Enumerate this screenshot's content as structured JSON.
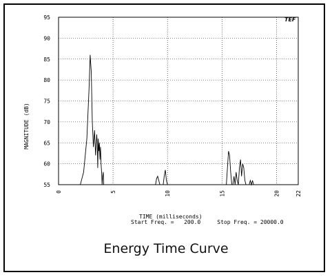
{
  "caption": "Energy Time Curve",
  "logo_text": "TEF",
  "frequency": {
    "start_label": "Start Freq. =",
    "start_value": "200.0",
    "stop_label": "Stop Freq. =",
    "stop_value": "20000.0"
  },
  "chart_data": {
    "type": "line",
    "title": "",
    "xlabel": "TIME (milliseconds)",
    "ylabel": "MAGNITUDE (dB)",
    "xlim": [
      0,
      22
    ],
    "ylim": [
      55,
      95
    ],
    "x_ticks": [
      "0",
      "5",
      "10",
      "15",
      "20",
      "22"
    ],
    "y_ticks": [
      "95",
      "90",
      "85",
      "80",
      "75",
      "70",
      "65",
      "60",
      "55"
    ],
    "grid": "dotted",
    "series": [
      {
        "x": [
          2.0,
          2.3,
          2.6,
          2.8,
          2.9,
          3.0,
          3.1,
          3.2,
          3.3,
          3.4,
          3.5,
          3.55,
          3.6,
          3.65,
          3.7,
          3.75,
          3.8,
          3.85,
          3.9,
          3.95,
          4.0,
          4.05,
          4.1,
          4.15,
          4.2,
          4.25,
          4.3,
          4.35,
          4.4,
          4.5,
          5.0,
          8.9,
          9.0,
          9.1,
          9.2,
          9.3,
          9.4,
          9.5,
          9.6,
          9.7,
          9.8,
          9.9,
          10.0,
          10.1,
          10.2,
          15.4,
          15.5,
          15.6,
          15.7,
          15.8,
          15.9,
          16.0,
          16.1,
          16.2,
          16.3,
          16.4,
          16.5,
          16.6,
          16.7,
          16.8,
          16.9,
          17.0,
          17.1,
          17.2,
          17.3,
          17.4,
          17.5,
          17.6,
          17.7,
          17.8,
          17.9,
          18.0,
          18.1,
          18.2,
          18.3,
          18.5
        ],
        "y": [
          55,
          58,
          66,
          78,
          86,
          82,
          70,
          64,
          68,
          62,
          67,
          65,
          59,
          66,
          63,
          65,
          61,
          64,
          60,
          58,
          55,
          57,
          58,
          55,
          55,
          55,
          55,
          55,
          55,
          55,
          55,
          55,
          56.5,
          57,
          56,
          55,
          55,
          55,
          55,
          57,
          58.5,
          56,
          55,
          55,
          55,
          55,
          59,
          63,
          62,
          58,
          55,
          55,
          57,
          55,
          58,
          56,
          55,
          59,
          61,
          57,
          60,
          59,
          56,
          55,
          55,
          55,
          55,
          56,
          55,
          56,
          55,
          55,
          55,
          55,
          55,
          55
        ]
      }
    ]
  }
}
